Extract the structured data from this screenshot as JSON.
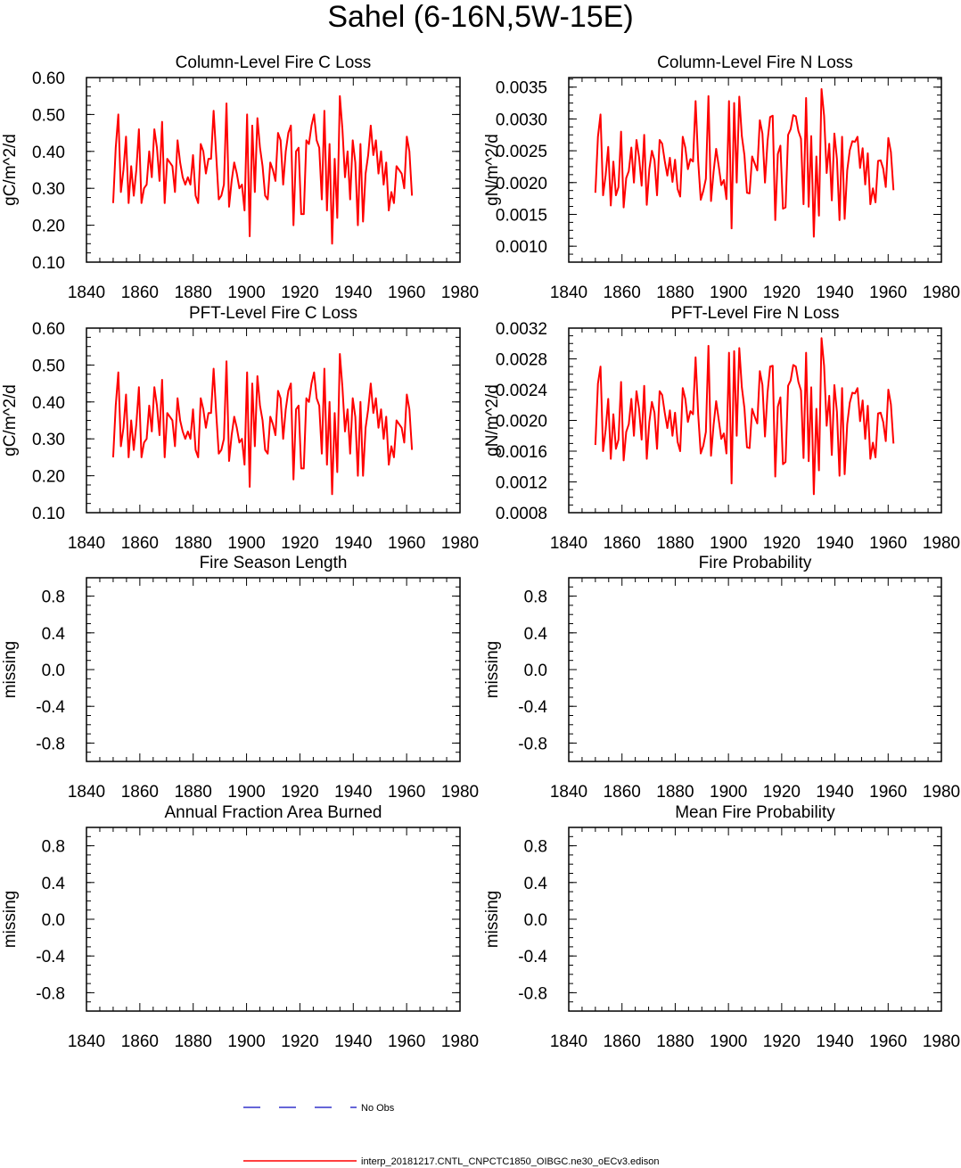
{
  "title": "Sahel (6-16N,5W-15E)",
  "colors": {
    "model": "#ff0000",
    "obs": "#3333cc",
    "axis": "#000000"
  },
  "legend": [
    {
      "label": "No Obs",
      "style": "dashed",
      "color": "#3333cc"
    },
    {
      "label": "interp_20181217.CNTL_CNPCTC1850_OIBGC.ne30_oECv3.edison",
      "style": "solid",
      "color": "#ff0000"
    }
  ],
  "chart_data": [
    {
      "type": "line",
      "title": "Column-Level Fire C Loss",
      "ylabel": "gC/m^2/d",
      "xlim": [
        1840,
        1980
      ],
      "xticks": [
        1840,
        1860,
        1880,
        1900,
        1920,
        1940,
        1960,
        1980
      ],
      "ylim": [
        0.1,
        0.6
      ],
      "yticks": [
        0.1,
        0.2,
        0.3,
        0.4,
        0.5,
        0.6
      ],
      "ydecimals": 2,
      "x_start": 1850,
      "x_end": 1962,
      "values": [
        0.26,
        0.41,
        0.5,
        0.29,
        0.35,
        0.44,
        0.26,
        0.36,
        0.28,
        0.35,
        0.46,
        0.26,
        0.3,
        0.31,
        0.4,
        0.33,
        0.46,
        0.41,
        0.32,
        0.48,
        0.26,
        0.38,
        0.37,
        0.36,
        0.29,
        0.43,
        0.37,
        0.33,
        0.31,
        0.33,
        0.31,
        0.39,
        0.28,
        0.26,
        0.42,
        0.4,
        0.34,
        0.38,
        0.38,
        0.51,
        0.39,
        0.27,
        0.28,
        0.31,
        0.53,
        0.25,
        0.32,
        0.37,
        0.34,
        0.3,
        0.31,
        0.24,
        0.5,
        0.17,
        0.47,
        0.29,
        0.49,
        0.41,
        0.36,
        0.28,
        0.27,
        0.37,
        0.35,
        0.32,
        0.45,
        0.43,
        0.31,
        0.4,
        0.45,
        0.47,
        0.2,
        0.4,
        0.41,
        0.23,
        0.23,
        0.43,
        0.42,
        0.47,
        0.5,
        0.43,
        0.41,
        0.27,
        0.51,
        0.24,
        0.42,
        0.15,
        0.38,
        0.22,
        0.55,
        0.46,
        0.33,
        0.4,
        0.27,
        0.43,
        0.37,
        0.2,
        0.42,
        0.21,
        0.34,
        0.39,
        0.47,
        0.39,
        0.43,
        0.34,
        0.4,
        0.31,
        0.37,
        0.24,
        0.29,
        0.26,
        0.36,
        0.35,
        0.34,
        0.3,
        0.44,
        0.4,
        0.28
      ]
    },
    {
      "type": "line",
      "title": "Column-Level Fire N Loss",
      "ylabel": "gN/m^2/d",
      "xlim": [
        1840,
        1980
      ],
      "xticks": [
        1840,
        1860,
        1880,
        1900,
        1920,
        1940,
        1960,
        1980
      ],
      "ylim": [
        0.00075,
        0.00365
      ],
      "yticks": [
        0.001,
        0.0015,
        0.002,
        0.0025,
        0.003,
        0.0035
      ],
      "ydecimals": 4,
      "x_start": 1850,
      "x_end": 1962,
      "values": [
        0.00184,
        0.00272,
        0.00307,
        0.0018,
        0.00212,
        0.00256,
        0.00164,
        0.00233,
        0.0018,
        0.00193,
        0.0028,
        0.00161,
        0.00207,
        0.00218,
        0.00255,
        0.002,
        0.00267,
        0.0024,
        0.00195,
        0.00275,
        0.00165,
        0.00221,
        0.0025,
        0.00235,
        0.0018,
        0.00267,
        0.00261,
        0.00234,
        0.00211,
        0.00239,
        0.00201,
        0.00236,
        0.0019,
        0.00178,
        0.00272,
        0.00255,
        0.00221,
        0.00237,
        0.00233,
        0.00328,
        0.00234,
        0.00173,
        0.00187,
        0.00206,
        0.00336,
        0.00171,
        0.00217,
        0.00253,
        0.00226,
        0.00196,
        0.00204,
        0.00174,
        0.00328,
        0.00128,
        0.00325,
        0.002,
        0.00335,
        0.00273,
        0.00243,
        0.00184,
        0.00183,
        0.00241,
        0.0023,
        0.00219,
        0.00298,
        0.00277,
        0.002,
        0.00265,
        0.00303,
        0.00305,
        0.00141,
        0.00245,
        0.00258,
        0.00159,
        0.00161,
        0.00275,
        0.00284,
        0.00306,
        0.00304,
        0.00281,
        0.00269,
        0.00166,
        0.00333,
        0.00162,
        0.00273,
        0.00115,
        0.00241,
        0.00148,
        0.00347,
        0.00305,
        0.00215,
        0.00261,
        0.00172,
        0.00277,
        0.00237,
        0.00141,
        0.00272,
        0.00143,
        0.00219,
        0.00251,
        0.00265,
        0.00264,
        0.00272,
        0.00223,
        0.00254,
        0.00197,
        0.00246,
        0.00166,
        0.00191,
        0.00169,
        0.00234,
        0.00235,
        0.00222,
        0.00193,
        0.0027,
        0.00248,
        0.00188
      ]
    },
    {
      "type": "line",
      "title": "PFT-Level Fire C Loss",
      "ylabel": "gC/m^2/d",
      "xlim": [
        1840,
        1980
      ],
      "xticks": [
        1840,
        1860,
        1880,
        1900,
        1920,
        1940,
        1960,
        1980
      ],
      "ylim": [
        0.1,
        0.6
      ],
      "yticks": [
        0.1,
        0.2,
        0.3,
        0.4,
        0.5,
        0.6
      ],
      "ydecimals": 2,
      "x_start": 1850,
      "x_end": 1962,
      "values": [
        0.25,
        0.39,
        0.48,
        0.28,
        0.33,
        0.42,
        0.25,
        0.35,
        0.27,
        0.34,
        0.44,
        0.25,
        0.29,
        0.3,
        0.39,
        0.32,
        0.44,
        0.39,
        0.31,
        0.46,
        0.25,
        0.37,
        0.36,
        0.35,
        0.28,
        0.41,
        0.35,
        0.32,
        0.3,
        0.32,
        0.3,
        0.38,
        0.27,
        0.25,
        0.41,
        0.38,
        0.33,
        0.37,
        0.37,
        0.49,
        0.37,
        0.26,
        0.27,
        0.3,
        0.51,
        0.24,
        0.31,
        0.36,
        0.33,
        0.29,
        0.3,
        0.23,
        0.48,
        0.17,
        0.45,
        0.28,
        0.47,
        0.39,
        0.35,
        0.27,
        0.26,
        0.36,
        0.34,
        0.31,
        0.43,
        0.41,
        0.3,
        0.38,
        0.43,
        0.45,
        0.19,
        0.38,
        0.39,
        0.22,
        0.22,
        0.41,
        0.4,
        0.45,
        0.48,
        0.41,
        0.39,
        0.26,
        0.49,
        0.23,
        0.4,
        0.15,
        0.37,
        0.21,
        0.53,
        0.44,
        0.32,
        0.38,
        0.26,
        0.41,
        0.36,
        0.2,
        0.4,
        0.2,
        0.33,
        0.38,
        0.45,
        0.37,
        0.41,
        0.33,
        0.38,
        0.3,
        0.36,
        0.23,
        0.28,
        0.25,
        0.35,
        0.34,
        0.33,
        0.29,
        0.42,
        0.38,
        0.27
      ]
    },
    {
      "type": "line",
      "title": "PFT-Level Fire N Loss",
      "ylabel": "gN/m^2/d",
      "xlim": [
        1840,
        1980
      ],
      "xticks": [
        1840,
        1860,
        1880,
        1900,
        1920,
        1940,
        1960,
        1980
      ],
      "ylim": [
        0.0008,
        0.0032
      ],
      "yticks": [
        0.0008,
        0.0012,
        0.0016,
        0.002,
        0.0024,
        0.0028,
        0.0032
      ],
      "ydecimals": 4,
      "x_start": 1850,
      "x_end": 1962,
      "values": [
        0.00168,
        0.00248,
        0.0027,
        0.0016,
        0.00188,
        0.00228,
        0.0015,
        0.00208,
        0.00163,
        0.00175,
        0.0025,
        0.00148,
        0.00185,
        0.00195,
        0.00228,
        0.0018,
        0.00238,
        0.00215,
        0.00175,
        0.00245,
        0.0015,
        0.00198,
        0.00224,
        0.0021,
        0.00163,
        0.00238,
        0.00233,
        0.0021,
        0.0019,
        0.00213,
        0.0018,
        0.0021,
        0.00172,
        0.0016,
        0.00242,
        0.00228,
        0.00198,
        0.00212,
        0.00208,
        0.00282,
        0.00208,
        0.00157,
        0.00167,
        0.00185,
        0.00297,
        0.00154,
        0.00194,
        0.00225,
        0.00201,
        0.00176,
        0.00183,
        0.00157,
        0.00288,
        0.00118,
        0.0029,
        0.0018,
        0.00294,
        0.00243,
        0.00216,
        0.00165,
        0.00164,
        0.00215,
        0.00205,
        0.00196,
        0.00264,
        0.00246,
        0.00179,
        0.00236,
        0.0027,
        0.00271,
        0.00127,
        0.00218,
        0.0023,
        0.00143,
        0.00146,
        0.00245,
        0.00252,
        0.00272,
        0.0027,
        0.0025,
        0.00239,
        0.00151,
        0.00288,
        0.00147,
        0.00243,
        0.00104,
        0.00215,
        0.00135,
        0.00307,
        0.00271,
        0.00193,
        0.00232,
        0.00155,
        0.00246,
        0.00211,
        0.00128,
        0.00242,
        0.0013,
        0.00195,
        0.00223,
        0.00236,
        0.00235,
        0.00242,
        0.00199,
        0.00226,
        0.00176,
        0.00219,
        0.0015,
        0.00171,
        0.00152,
        0.00209,
        0.0021,
        0.00198,
        0.00173,
        0.0024,
        0.00221,
        0.0017
      ]
    },
    {
      "type": "line",
      "title": "Fire Season Length",
      "ylabel": "missing",
      "xlim": [
        1840,
        1980
      ],
      "xticks": [
        1840,
        1860,
        1880,
        1900,
        1920,
        1940,
        1960,
        1980
      ],
      "ylim": [
        -1,
        1
      ],
      "yticks": [
        -0.8,
        -0.4,
        0.0,
        0.4,
        0.8
      ],
      "ydecimals": 1,
      "values": []
    },
    {
      "type": "line",
      "title": "Fire Probability",
      "ylabel": "missing",
      "xlim": [
        1840,
        1980
      ],
      "xticks": [
        1840,
        1860,
        1880,
        1900,
        1920,
        1940,
        1960,
        1980
      ],
      "ylim": [
        -1,
        1
      ],
      "yticks": [
        -0.8,
        -0.4,
        0.0,
        0.4,
        0.8
      ],
      "ydecimals": 1,
      "values": []
    },
    {
      "type": "line",
      "title": "Annual Fraction Area Burned",
      "ylabel": "missing",
      "xlim": [
        1840,
        1980
      ],
      "xticks": [
        1840,
        1860,
        1880,
        1900,
        1920,
        1940,
        1960,
        1980
      ],
      "ylim": [
        -1,
        1
      ],
      "yticks": [
        -0.8,
        -0.4,
        0.0,
        0.4,
        0.8
      ],
      "ydecimals": 1,
      "values": []
    },
    {
      "type": "line",
      "title": "Mean Fire Probability",
      "ylabel": "missing",
      "xlim": [
        1840,
        1980
      ],
      "xticks": [
        1840,
        1860,
        1880,
        1900,
        1920,
        1940,
        1960,
        1980
      ],
      "ylim": [
        -1,
        1
      ],
      "yticks": [
        -0.8,
        -0.4,
        0.0,
        0.4,
        0.8
      ],
      "ydecimals": 1,
      "values": []
    }
  ]
}
